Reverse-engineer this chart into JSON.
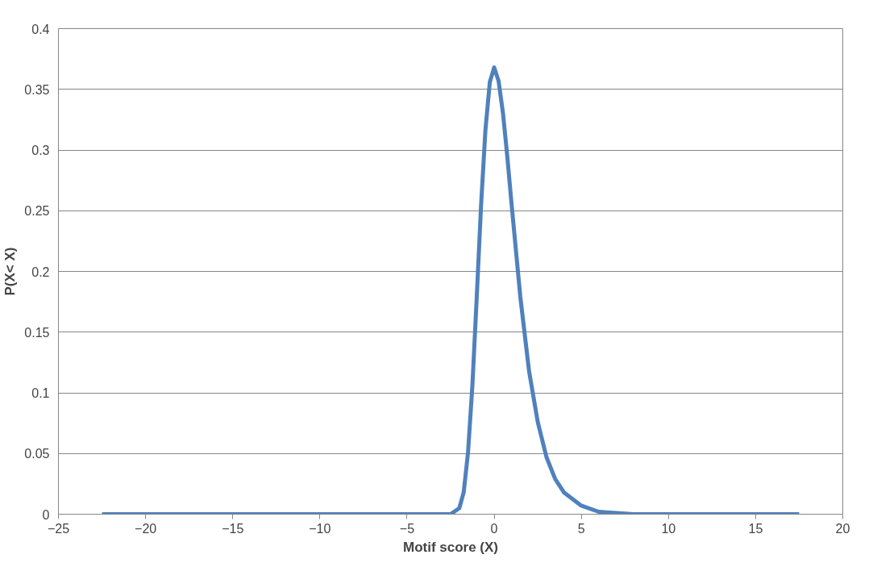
{
  "chart_data": {
    "type": "line",
    "xlabel": "Motif score (X)",
    "ylabel": "P(X< X)",
    "xlim": [
      -25,
      20
    ],
    "xticks": [
      -25,
      -20,
      -15,
      -10,
      -5,
      0,
      5,
      10,
      15,
      20
    ],
    "ylim": [
      0,
      0.4
    ],
    "yticks": [
      0,
      0.05,
      0.1,
      0.15,
      0.2,
      0.25,
      0.3,
      0.35,
      0.4
    ],
    "grid": "y",
    "marker": "none",
    "line_style": "solid",
    "series": [
      {
        "color": "#4f81bd",
        "x": [
          -22.5,
          -10,
          -5,
          -3,
          -2.5,
          -2,
          -1.75,
          -1.5,
          -1.25,
          -1,
          -0.75,
          -0.5,
          -0.25,
          0,
          0.25,
          0.5,
          0.75,
          1,
          1.5,
          2,
          2.5,
          3,
          3.5,
          4,
          5,
          6,
          7,
          8,
          10,
          17.5
        ],
        "values": [
          0,
          0,
          0,
          0,
          0,
          0.005,
          0.018,
          0.051,
          0.106,
          0.179,
          0.255,
          0.317,
          0.356,
          0.368,
          0.357,
          0.331,
          0.295,
          0.255,
          0.179,
          0.118,
          0.076,
          0.047,
          0.029,
          0.018,
          0.007,
          0.002,
          0.001,
          0,
          0,
          0
        ]
      }
    ]
  }
}
